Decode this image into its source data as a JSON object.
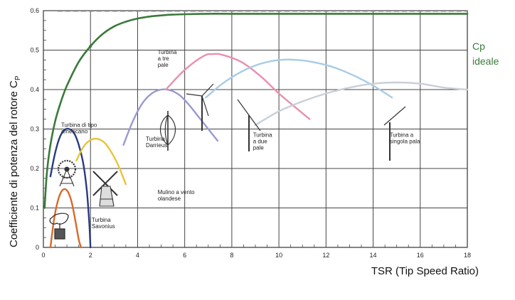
{
  "chart_data": {
    "type": "line",
    "xlabel": "TSR (Tip Speed Ratio)",
    "ylabel": "Coefficiente di potenza del rotore  C",
    "ylabel_sub": "P",
    "xlim": [
      0,
      18
    ],
    "ylim": [
      0,
      0.6
    ],
    "xticks": [
      "0",
      "2",
      "4",
      "6",
      "8",
      "10",
      "12",
      "14",
      "16",
      "18"
    ],
    "yticks": [
      "0",
      "0.1",
      "0.2",
      "0.3",
      "0.4",
      "0.5",
      "0.6"
    ],
    "grid": true,
    "ideal_limit": 0.593,
    "ideal_label": [
      "Cp",
      "ideale"
    ],
    "colors": {
      "ideal": "#3a7a3a",
      "dashed": "#999999",
      "savonius": "#d86a2a",
      "american": "#2a3a80",
      "dutch": "#e6c43a",
      "darrieus": "#9a9ad0",
      "three_blade": "#e890b0",
      "two_blade": "#a8cce6",
      "single_blade": "#c8d0d8"
    },
    "series": [
      {
        "key": "ideal",
        "x": [
          0.05,
          0.15,
          0.3,
          0.5,
          0.75,
          1,
          1.5,
          2,
          2.5,
          3,
          3.5,
          4,
          4.5,
          5,
          5.5,
          6,
          7,
          8,
          10,
          12,
          14,
          16,
          18
        ],
        "y": [
          0.1,
          0.19,
          0.26,
          0.32,
          0.37,
          0.41,
          0.47,
          0.51,
          0.54,
          0.56,
          0.572,
          0.58,
          0.585,
          0.588,
          0.59,
          0.591,
          0.592,
          0.592,
          0.592,
          0.592,
          0.592,
          0.592,
          0.592
        ]
      },
      {
        "key": "savonius",
        "x": [
          0.3,
          0.45,
          0.6,
          0.75,
          0.9,
          1.05,
          1.2,
          1.35,
          1.5,
          1.6
        ],
        "y": [
          0.0,
          0.07,
          0.115,
          0.14,
          0.148,
          0.14,
          0.115,
          0.07,
          0.02,
          0.0
        ]
      },
      {
        "key": "american",
        "x": [
          0.3,
          0.5,
          0.7,
          0.9,
          1.1,
          1.3,
          1.5,
          1.7,
          1.85,
          1.95,
          2.0
        ],
        "y": [
          0.18,
          0.24,
          0.28,
          0.298,
          0.3,
          0.29,
          0.26,
          0.21,
          0.14,
          0.06,
          0.0
        ]
      },
      {
        "key": "dutch",
        "x": [
          1.4,
          1.7,
          2.0,
          2.3,
          2.6,
          2.9,
          3.2,
          3.5
        ],
        "y": [
          0.22,
          0.255,
          0.272,
          0.275,
          0.265,
          0.24,
          0.205,
          0.16
        ]
      },
      {
        "key": "darrieus",
        "x": [
          3.4,
          3.8,
          4.2,
          4.6,
          5.0,
          5.4,
          5.8,
          6.2,
          6.6,
          7.0,
          7.4
        ],
        "y": [
          0.26,
          0.32,
          0.365,
          0.39,
          0.4,
          0.398,
          0.385,
          0.36,
          0.33,
          0.3,
          0.27
        ]
      },
      {
        "key": "three_blade",
        "x": [
          5.2,
          6.0,
          6.8,
          7.2,
          7.6,
          8.4,
          9.2,
          10.0,
          10.8,
          11.3
        ],
        "y": [
          0.4,
          0.45,
          0.485,
          0.49,
          0.488,
          0.47,
          0.435,
          0.39,
          0.35,
          0.325
        ]
      },
      {
        "key": "two_blade",
        "x": [
          6.9,
          7.6,
          8.4,
          9.2,
          10.0,
          10.8,
          11.6,
          12.4,
          13.2,
          14.0,
          14.8
        ],
        "y": [
          0.38,
          0.415,
          0.445,
          0.465,
          0.475,
          0.475,
          0.468,
          0.455,
          0.435,
          0.41,
          0.38
        ]
      },
      {
        "key": "single_blade",
        "x": [
          9.0,
          10.0,
          11.0,
          12.0,
          13.0,
          14.0,
          15.0,
          16.0,
          17.0,
          18.0
        ],
        "y": [
          0.31,
          0.345,
          0.37,
          0.39,
          0.405,
          0.415,
          0.418,
          0.415,
          0.405,
          0.4
        ]
      }
    ],
    "annotations": [
      {
        "key": "american",
        "lines": [
          "Turbina di tipo",
          "americano"
        ],
        "x": 0.75,
        "y": 0.305
      },
      {
        "key": "dutch",
        "lines": [
          "Mulino a vento",
          "olandese"
        ],
        "x": 4.85,
        "y": 0.135
      },
      {
        "key": "savonius",
        "lines": [
          "Turbina",
          "Savonius"
        ],
        "x": 2.05,
        "y": 0.065
      },
      {
        "key": "darrieus",
        "lines": [
          "Turbina",
          "Darrieus"
        ],
        "x": 4.35,
        "y": 0.27
      },
      {
        "key": "three_blade",
        "lines": [
          "Turbina",
          "a tre",
          "pale"
        ],
        "x": 4.85,
        "y": 0.49
      },
      {
        "key": "two_blade",
        "lines": [
          "Turbina",
          "a due",
          "pale"
        ],
        "x": 8.9,
        "y": 0.28
      },
      {
        "key": "single_blade",
        "lines": [
          "Turbina a",
          "singola pala"
        ],
        "x": 14.7,
        "y": 0.28
      }
    ]
  }
}
